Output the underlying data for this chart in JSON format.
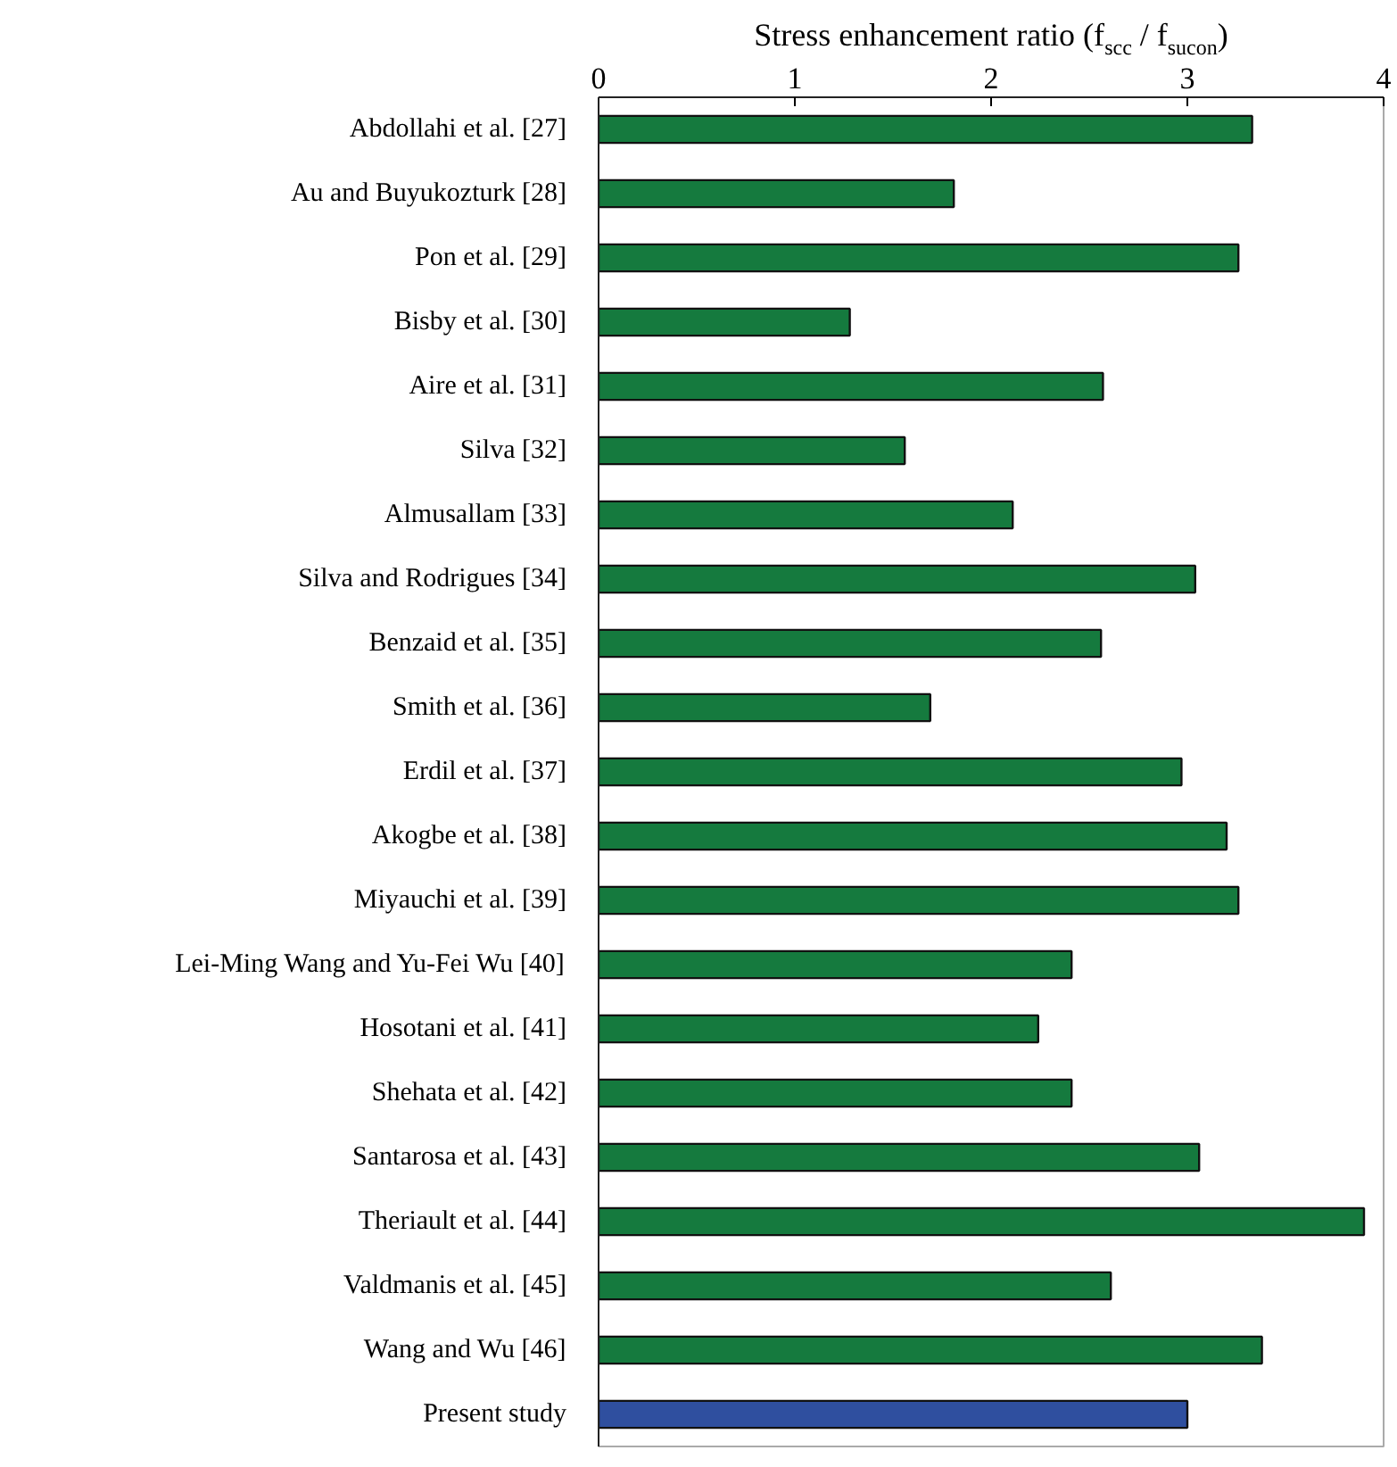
{
  "chart_data": {
    "type": "bar",
    "orientation": "horizontal",
    "xlabel": "Stress enhancement ratio (f$_{scc}$ / f$_{sucon}$)",
    "categories": [
      "Abdollahi et al. [27]",
      "Au and Buyukozturk [28]",
      "Pon et al. [29]",
      "Bisby et al. [30]",
      "Aire et al. [31]",
      "Silva [32]",
      "Almusallam [33]",
      "Silva and Rodrigues [34]",
      "Benzaid et al. [35]",
      "Smith et al. [36]",
      "Erdil et al. [37]",
      "Akogbe et al. [38]",
      "Miyauchi et al. [39]",
      "Lei-Ming Wang and Yu-Fei Wu [40]",
      "Hosotani et al. [41]",
      "Shehata et al. [42]",
      "Santarosa et al. [43]",
      "Theriault et al. [44]",
      "Valdmanis et al. [45]",
      "Wang and Wu [46]",
      "Present study"
    ],
    "values": [
      3.33,
      1.81,
      3.26,
      1.28,
      2.57,
      1.56,
      2.11,
      3.04,
      2.56,
      1.69,
      2.97,
      3.2,
      3.26,
      2.41,
      2.24,
      2.41,
      3.06,
      3.9,
      2.61,
      3.38,
      3.0
    ],
    "colors": [
      "#157a3e",
      "#157a3e",
      "#157a3e",
      "#157a3e",
      "#157a3e",
      "#157a3e",
      "#157a3e",
      "#157a3e",
      "#157a3e",
      "#157a3e",
      "#157a3e",
      "#157a3e",
      "#157a3e",
      "#157a3e",
      "#157a3e",
      "#157a3e",
      "#157a3e",
      "#157a3e",
      "#157a3e",
      "#157a3e",
      "#2f4f9f"
    ],
    "xlim": [
      0,
      4
    ],
    "xticks": [
      0,
      1,
      2,
      3,
      4
    ],
    "grid": false
  }
}
